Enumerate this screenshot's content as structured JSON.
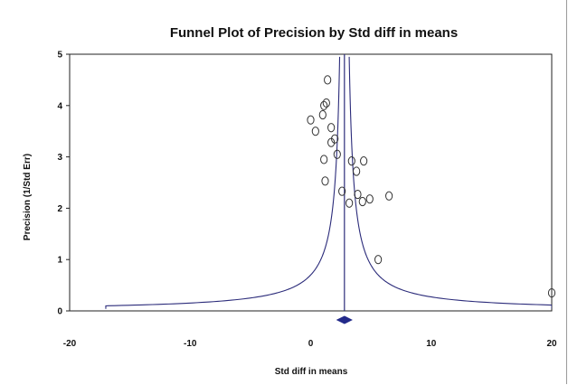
{
  "chart_data": {
    "type": "scatter",
    "title": "Funnel Plot of Precision by Std diff in means",
    "xlabel": "Std diff in means",
    "ylabel": "Precision (1/Std Err)",
    "xlim": [
      -20,
      20
    ],
    "ylim": [
      0,
      5
    ],
    "x_ticks": [
      "-20",
      "-10",
      "0",
      "10",
      "20"
    ],
    "y_ticks": [
      "0",
      "1",
      "2",
      "3",
      "4",
      "5"
    ],
    "pooled_estimate": 2.8,
    "funnel_constant": 1.96,
    "points": [
      {
        "x": 1.4,
        "y": 4.5
      },
      {
        "x": 1.3,
        "y": 4.05
      },
      {
        "x": 1.1,
        "y": 4.0
      },
      {
        "x": 1.0,
        "y": 3.82
      },
      {
        "x": 0.0,
        "y": 3.72
      },
      {
        "x": 1.7,
        "y": 3.57
      },
      {
        "x": 0.4,
        "y": 3.5
      },
      {
        "x": 2.0,
        "y": 3.35
      },
      {
        "x": 1.7,
        "y": 3.28
      },
      {
        "x": 2.2,
        "y": 3.05
      },
      {
        "x": 1.1,
        "y": 2.95
      },
      {
        "x": 3.4,
        "y": 2.92
      },
      {
        "x": 4.4,
        "y": 2.92
      },
      {
        "x": 3.8,
        "y": 2.72
      },
      {
        "x": 1.2,
        "y": 2.53
      },
      {
        "x": 2.6,
        "y": 2.33
      },
      {
        "x": 3.9,
        "y": 2.27
      },
      {
        "x": 6.5,
        "y": 2.24
      },
      {
        "x": 4.9,
        "y": 2.18
      },
      {
        "x": 4.3,
        "y": 2.13
      },
      {
        "x": 3.2,
        "y": 2.1
      },
      {
        "x": 5.6,
        "y": 1.0
      },
      {
        "x": 20.0,
        "y": 0.35
      }
    ],
    "colors": {
      "line": "#2b2b7a",
      "points": "#333333",
      "diamond": "#232a8a",
      "axes": "#222222"
    }
  }
}
